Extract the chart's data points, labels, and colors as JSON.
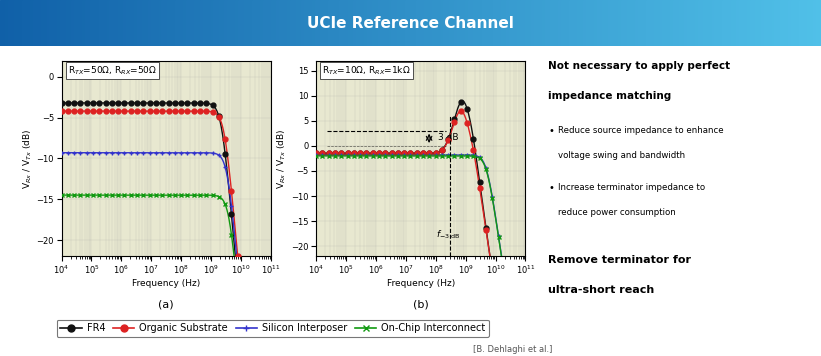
{
  "title": "UCIe Reference Channel",
  "title_bg_left": "#1060a8",
  "title_bg_right": "#50c0e8",
  "title_text_color": "white",
  "plot_bg_color": "#e8e8d0",
  "right_panel_bg": "#eeeeee",
  "bottom_citation": "[B. Dehlaghi et al.]",
  "plot_a_title": "R$_{TX}$=50Ω, R$_{RX}$=50Ω",
  "plot_b_title": "R$_{TX}$=10Ω, R$_{RX}$=1kΩ",
  "xlabel": "Frequency (Hz)",
  "ylabel_a": "V$_{Rx}$ / V$_{Tx}$ (dB)",
  "ylabel_b": "V$_{Rx}$ / V$_{Tx}$ (dB)",
  "freq_min": 10000.0,
  "freq_max": 100000000000.0,
  "ylim_a": [
    -22,
    2
  ],
  "ylim_b": [
    -22,
    17
  ],
  "yticks_a": [
    0,
    -5,
    -10,
    -15,
    -20
  ],
  "yticks_b": [
    15,
    10,
    5,
    0,
    -5,
    -10,
    -15,
    -20
  ],
  "colors": [
    "#111111",
    "#dd2222",
    "#3333cc",
    "#119911"
  ],
  "markers": [
    "o",
    "o",
    "+",
    "x"
  ],
  "legend_labels": [
    "FR4",
    "Organic Substrate",
    "Silicon Interposer",
    "On-Chip Interconnect"
  ],
  "right_title1": "Not necessary to apply perfect",
  "right_title2": "impedance matching",
  "bullet1_line1": "Reduce source impedance to enhance",
  "bullet1_line2": "voltage swing and bandwidth",
  "bullet2_line1": "Increase terminator impedance to",
  "bullet2_line2": "reduce power consumption",
  "right_title3": "Remove terminator for",
  "right_title4": "ultra-short reach",
  "label_a": "(a)",
  "label_b": "(b)"
}
